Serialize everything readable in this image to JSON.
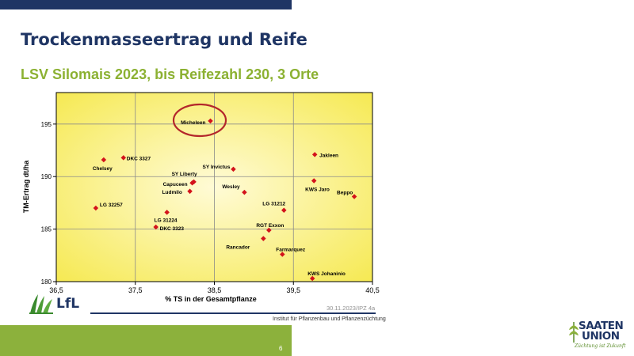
{
  "slide": {
    "title": "Trockenmasseertrag und Reife",
    "subtitle": "LSV Silomais 2023, bis Reifezahl 230, 3 Orte",
    "page_number": "6",
    "date_code": "30.11.2023/IPZ 4a",
    "institute": "Institut für Pflanzenbau und Pflanzenzüchtung",
    "logo_left": "LfL",
    "logo_right": {
      "line1": "SAATEN",
      "line2": "UNION",
      "slogan": "Züchtung ist Zukunft"
    }
  },
  "colors": {
    "title": "#1f3564",
    "subtitle": "#8cb132",
    "marker": "#d3131b",
    "highlight_circle": "#b3262b",
    "plot_bg_center": "#fffbd6",
    "plot_bg_edge": "#f5e84a",
    "bottom_bar": "#8cb13c"
  },
  "chart_data": {
    "type": "scatter",
    "title": "",
    "xlabel": "% TS in der Gesamtpflanze",
    "ylabel": "TM-Ertrag dt/ha",
    "xlim": [
      36.5,
      40.5
    ],
    "ylim": [
      180,
      198
    ],
    "xticks": [
      "36,5",
      "37,5",
      "38,5",
      "39,5",
      "40,5"
    ],
    "yticks": [
      "180",
      "185",
      "190",
      "195"
    ],
    "grid": true,
    "highlighted": "Micheleen",
    "points": [
      {
        "label": "Micheleen",
        "x": 38.45,
        "y": 195.3
      },
      {
        "label": "Chelsey",
        "x": 37.1,
        "y": 191.6
      },
      {
        "label": "DKC 3327",
        "x": 37.35,
        "y": 191.8
      },
      {
        "label": "Jakleen",
        "x": 39.77,
        "y": 192.1
      },
      {
        "label": "SY Invictus",
        "x": 38.74,
        "y": 190.7
      },
      {
        "label": "SY Liberty",
        "x": 38.24,
        "y": 189.5
      },
      {
        "label": "Capuceen",
        "x": 38.22,
        "y": 189.4
      },
      {
        "label": "Ludmilo",
        "x": 38.19,
        "y": 188.6
      },
      {
        "label": "Wesley",
        "x": 38.88,
        "y": 188.5
      },
      {
        "label": "KWS Jaro",
        "x": 39.76,
        "y": 189.6
      },
      {
        "label": "Beppo",
        "x": 40.27,
        "y": 188.1
      },
      {
        "label": "LG 32257",
        "x": 37.0,
        "y": 187.0
      },
      {
        "label": "LG 31212",
        "x": 39.38,
        "y": 186.8
      },
      {
        "label": "LG 31224",
        "x": 37.9,
        "y": 186.6
      },
      {
        "label": "DKC 3323",
        "x": 37.76,
        "y": 185.2
      },
      {
        "label": "RGT Exxon",
        "x": 39.19,
        "y": 184.9
      },
      {
        "label": "Rancador",
        "x": 39.12,
        "y": 184.1
      },
      {
        "label": "Farmarquez",
        "x": 39.36,
        "y": 182.6
      },
      {
        "label": "KWS Johaninio",
        "x": 39.74,
        "y": 180.3
      }
    ]
  }
}
